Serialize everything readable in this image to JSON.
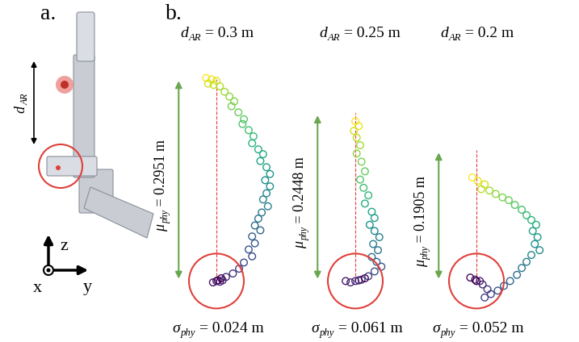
{
  "panel_a": {
    "label": "a.",
    "distance": {
      "symbol": "d",
      "subscript": "AR"
    },
    "axis_labels": {
      "z": "z",
      "y": "y",
      "x": "x"
    }
  },
  "panel_b": {
    "label": "b."
  },
  "chart_data": [
    {
      "type": "scatter",
      "title": {
        "symbol": "d",
        "subscript": "AR",
        "text": " = 0.3 m"
      },
      "x": [
        -0.015,
        -0.007,
        0.0,
        -0.012,
        -0.004,
        0.005,
        0.012,
        0.019,
        0.026,
        0.022,
        0.032,
        0.04,
        0.038,
        0.047,
        0.054,
        0.052,
        0.061,
        0.068,
        0.064,
        0.073,
        0.078,
        0.071,
        0.078,
        0.073,
        0.068,
        0.075,
        0.066,
        0.061,
        0.056,
        0.064,
        0.052,
        0.056,
        0.047,
        0.052,
        0.04,
        0.033,
        0.024,
        0.014,
        0.009,
        0.005,
        0.0,
        -0.005,
        0.002,
        0.007
      ],
      "values": [
        0.296,
        0.294,
        0.292,
        0.288,
        0.286,
        0.284,
        0.276,
        0.269,
        0.262,
        0.255,
        0.246,
        0.236,
        0.229,
        0.22,
        0.211,
        0.201,
        0.192,
        0.185,
        0.175,
        0.166,
        0.156,
        0.147,
        0.138,
        0.128,
        0.119,
        0.109,
        0.1,
        0.091,
        0.081,
        0.074,
        0.065,
        0.055,
        0.046,
        0.036,
        0.027,
        0.018,
        0.011,
        0.006,
        0.001,
        -0.001,
        0.0,
        -0.002,
        0.001,
        0.004
      ],
      "xlim": [
        -0.1,
        0.1
      ],
      "ylim": [
        -0.055,
        0.345
      ],
      "tick_labels": false,
      "marker": "o",
      "annotations": {
        "mu_phy": {
          "value": 0.2951,
          "symbol": "μ",
          "subscript": "phy",
          "text": " = 0.2951 m"
        },
        "sigma_phy": {
          "symbol": "σ",
          "subscript": "phy",
          "text": " = 0.024 m"
        }
      }
    },
    {
      "type": "scatter",
      "title": {
        "symbol": "d",
        "subscript": "AR",
        "text": " = 0.25 m"
      },
      "x": [
        0.0,
        0.005,
        -0.002,
        0.002,
        0.007,
        0.002,
        0.009,
        0.014,
        0.007,
        0.012,
        0.019,
        0.014,
        0.024,
        0.028,
        0.021,
        0.028,
        0.035,
        0.026,
        0.033,
        0.024,
        0.031,
        0.038,
        0.028,
        0.019,
        0.009,
        0.0,
        -0.007,
        -0.014,
        0.005,
        0.014
      ],
      "values": [
        0.233,
        0.226,
        0.219,
        0.209,
        0.198,
        0.186,
        0.174,
        0.16,
        0.148,
        0.136,
        0.125,
        0.113,
        0.101,
        0.092,
        0.082,
        0.073,
        0.064,
        0.054,
        0.045,
        0.035,
        0.028,
        0.021,
        0.014,
        0.007,
        0.002,
        0.0,
        -0.002,
        0.0,
        0.001,
        0.004
      ],
      "xlim": [
        -0.1,
        0.1
      ],
      "ylim": [
        -0.055,
        0.345
      ],
      "tick_labels": false,
      "marker": "o",
      "annotations": {
        "mu_phy": {
          "value": 0.2448,
          "symbol": "μ",
          "subscript": "phy",
          "text": " = 0.2448 m"
        },
        "sigma_phy": {
          "symbol": "σ",
          "subscript": "phy",
          "text": " = 0.061 m"
        }
      }
    },
    {
      "type": "scatter",
      "title": {
        "symbol": "d",
        "subscript": "AR",
        "text": " = 0.2 m"
      },
      "x": [
        -0.006,
        0.002,
        0.012,
        0.007,
        0.019,
        0.028,
        0.038,
        0.047,
        0.056,
        0.066,
        0.073,
        0.08,
        0.087,
        0.082,
        0.089,
        0.085,
        0.092,
        0.08,
        0.073,
        0.066,
        0.059,
        0.049,
        0.04,
        0.031,
        0.021,
        0.012,
        0.016,
        0.009,
        0.005,
        -0.002,
        -0.009,
        0.0
      ],
      "values": [
        0.151,
        0.146,
        0.141,
        0.134,
        0.132,
        0.127,
        0.122,
        0.118,
        0.111,
        0.104,
        0.096,
        0.089,
        0.082,
        0.073,
        0.064,
        0.054,
        0.045,
        0.038,
        0.028,
        0.019,
        0.009,
        0.0,
        -0.007,
        -0.014,
        -0.019,
        -0.024,
        -0.012,
        -0.005,
        0.0,
        0.002,
        0.005,
        0.0
      ],
      "xlim": [
        -0.1,
        0.1
      ],
      "ylim": [
        -0.055,
        0.345
      ],
      "tick_labels": false,
      "marker": "o",
      "annotations": {
        "mu_phy": {
          "value": 0.1905,
          "symbol": "μ",
          "subscript": "phy",
          "text": " = 0.1905 m"
        },
        "sigma_phy": {
          "symbol": "σ",
          "subscript": "phy",
          "text": " = 0.052 m"
        }
      }
    }
  ]
}
